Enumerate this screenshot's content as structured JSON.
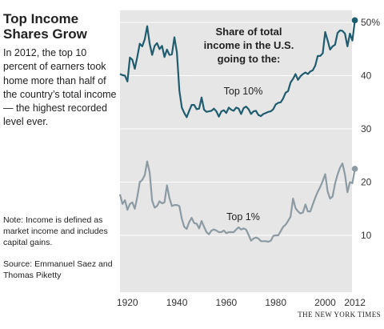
{
  "headline": "Top Income Shares Grow",
  "summary": "In 2012, the top 10 percent of earners took home more than half of the country’s total income — the highest recorded level ever.",
  "note": "Note: Income is defined as market income and includes capital gains.",
  "source": "Source: Emmanuel Saez and Thomas Piketty",
  "credit": "THE NEW YORK TIMES",
  "colors": {
    "background": "#e6e6e6",
    "top10": "#1f5c6e",
    "top1": "#8c9ba3",
    "gridline": "#ffffff"
  },
  "chart_data": {
    "type": "line",
    "title": "Share of total income in the U.S. going to the:",
    "title_lines": [
      "Share of total",
      "income in the U.S.",
      "going to the:"
    ],
    "xlabel": "",
    "ylabel": "",
    "xlim": [
      1917,
      2012
    ],
    "ylim": [
      5,
      50.5
    ],
    "x_ticks": [
      "1920",
      "1940",
      "1960",
      "1980",
      "2000",
      "2012"
    ],
    "y_ticks": [
      "50%",
      "40",
      "30",
      "20",
      "10"
    ],
    "grid": true,
    "series": [
      {
        "name": "Top 10%",
        "endpoint_marker": true,
        "x": [
          1917,
          1918,
          1919,
          1920,
          1921,
          1922,
          1923,
          1924,
          1925,
          1926,
          1927,
          1928,
          1929,
          1930,
          1931,
          1932,
          1933,
          1934,
          1935,
          1936,
          1937,
          1938,
          1939,
          1940,
          1941,
          1942,
          1943,
          1944,
          1945,
          1946,
          1947,
          1948,
          1949,
          1950,
          1951,
          1952,
          1953,
          1954,
          1955,
          1956,
          1957,
          1958,
          1959,
          1960,
          1961,
          1962,
          1963,
          1964,
          1965,
          1966,
          1967,
          1968,
          1969,
          1970,
          1971,
          1972,
          1973,
          1974,
          1975,
          1976,
          1977,
          1978,
          1979,
          1980,
          1981,
          1982,
          1983,
          1984,
          1985,
          1986,
          1987,
          1988,
          1989,
          1990,
          1991,
          1992,
          1993,
          1994,
          1995,
          1996,
          1997,
          1998,
          1999,
          2000,
          2001,
          2002,
          2003,
          2004,
          2005,
          2006,
          2007,
          2008,
          2009,
          2010,
          2011,
          2012
        ],
        "values": [
          40.3,
          40.1,
          40.0,
          38.9,
          43.4,
          43.0,
          41.3,
          43.5,
          46.0,
          45.5,
          46.8,
          49.3,
          46.0,
          43.9,
          45.6,
          46.1,
          45.0,
          45.6,
          43.5,
          44.9,
          43.9,
          44.0,
          47.2,
          44.4,
          37.2,
          34.0,
          33.0,
          32.2,
          33.4,
          34.5,
          34.5,
          33.7,
          33.8,
          35.9,
          33.6,
          33.2,
          33.3,
          33.4,
          33.8,
          33.3,
          32.3,
          33.3,
          33.5,
          33.0,
          34.0,
          33.6,
          33.4,
          34.0,
          33.8,
          32.8,
          33.9,
          34.2,
          33.7,
          32.8,
          33.3,
          33.4,
          32.6,
          32.4,
          32.8,
          33.0,
          33.2,
          33.3,
          33.7,
          34.6,
          34.9,
          35.0,
          35.7,
          36.8,
          37.1,
          38.7,
          39.4,
          40.3,
          39.2,
          39.9,
          40.3,
          40.6,
          40.3,
          40.8,
          41.0,
          41.9,
          43.7,
          43.7,
          44.2,
          48.2,
          46.6,
          44.9,
          45.5,
          45.8,
          48.0,
          48.5,
          48.4,
          47.9,
          45.5,
          47.9,
          46.6,
          50.4
        ]
      },
      {
        "name": "Top 1%",
        "endpoint_marker": true,
        "x": [
          1917,
          1918,
          1919,
          1920,
          1921,
          1922,
          1923,
          1924,
          1925,
          1926,
          1927,
          1928,
          1929,
          1930,
          1931,
          1932,
          1933,
          1934,
          1935,
          1936,
          1937,
          1938,
          1939,
          1940,
          1941,
          1942,
          1943,
          1944,
          1945,
          1946,
          1947,
          1948,
          1949,
          1950,
          1951,
          1952,
          1953,
          1954,
          1955,
          1956,
          1957,
          1958,
          1959,
          1960,
          1961,
          1962,
          1963,
          1964,
          1965,
          1966,
          1967,
          1968,
          1969,
          1970,
          1971,
          1972,
          1973,
          1974,
          1975,
          1976,
          1977,
          1978,
          1979,
          1980,
          1981,
          1982,
          1983,
          1984,
          1985,
          1986,
          1987,
          1988,
          1989,
          1990,
          1991,
          1992,
          1993,
          1994,
          1995,
          1996,
          1997,
          1998,
          1999,
          2000,
          2001,
          2002,
          2003,
          2004,
          2005,
          2006,
          2007,
          2008,
          2009,
          2010,
          2011,
          2012
        ],
        "values": [
          17.7,
          15.9,
          16.6,
          14.8,
          15.9,
          16.2,
          15.0,
          17.2,
          20.0,
          20.4,
          21.3,
          23.9,
          21.8,
          16.5,
          15.2,
          15.5,
          16.4,
          16.0,
          16.2,
          19.4,
          17.0,
          15.5,
          15.7,
          15.7,
          15.5,
          13.1,
          11.6,
          11.2,
          12.5,
          13.3,
          12.3,
          12.2,
          11.3,
          12.7,
          11.6,
          10.6,
          10.2,
          10.9,
          11.1,
          10.9,
          10.6,
          10.6,
          10.9,
          10.4,
          10.6,
          10.6,
          10.6,
          11.1,
          11.5,
          11.1,
          11.3,
          11.1,
          10.1,
          9.0,
          9.4,
          9.6,
          9.4,
          8.9,
          8.9,
          8.9,
          8.8,
          9.0,
          9.9,
          10.0,
          10.0,
          10.8,
          11.6,
          12.0,
          12.7,
          13.5,
          16.9,
          15.1,
          14.5,
          14.1,
          14.3,
          15.8,
          14.5,
          14.5,
          15.8,
          17.1,
          18.2,
          19.1,
          20.2,
          21.5,
          18.2,
          16.9,
          17.3,
          19.7,
          21.4,
          22.7,
          23.5,
          21.4,
          18.1,
          20.0,
          19.8,
          22.5
        ]
      }
    ]
  }
}
